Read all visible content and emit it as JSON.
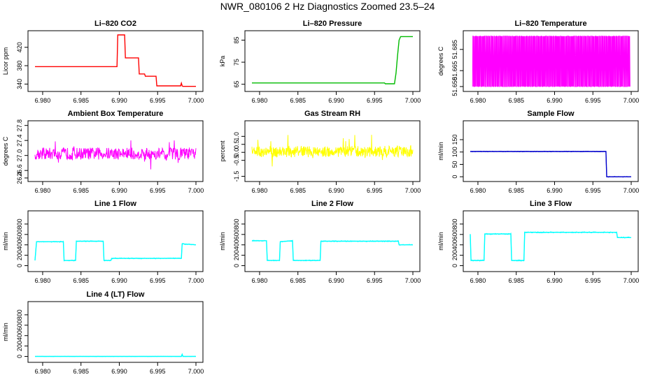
{
  "title": "NWR_080106  2 Hz Diagnostics Zoomed 23.5–24",
  "chart_data": [
    {
      "type": "line",
      "title": "Li–820 CO2",
      "ylabel": "Licor ppm",
      "color": "#ff0000",
      "xlim": [
        6.979,
        7.0
      ],
      "ylim": [
        330,
        450
      ],
      "xticks": [
        "6.980",
        "6.985",
        "6.990",
        "6.995",
        "7.000"
      ],
      "yticks": [
        "340",
        "380",
        "420"
      ],
      "series": [
        {
          "x": [
            6.979,
            6.9897,
            6.9898,
            6.9907,
            6.9908,
            6.9925,
            6.9926,
            6.9933,
            6.9934,
            6.9948,
            6.9949,
            6.998,
            6.9981,
            6.9982,
            6.9983,
            7.0
          ],
          "y": [
            378,
            378,
            447,
            447,
            397,
            397,
            362,
            362,
            357,
            357,
            336,
            336,
            342,
            336,
            335,
            335
          ]
        }
      ]
    },
    {
      "type": "line",
      "title": "Li–820 Pressure",
      "ylabel": "kPa",
      "color": "#00bb00",
      "xlim": [
        6.979,
        7.0
      ],
      "ylim": [
        63,
        88
      ],
      "xticks": [
        "6.980",
        "6.985",
        "6.990",
        "6.995",
        "7.000"
      ],
      "yticks": [
        "65",
        "75",
        "85"
      ],
      "series": [
        {
          "x": [
            6.979,
            6.9963,
            6.9964,
            6.9976,
            6.9978,
            6.998,
            6.9982,
            6.9984,
            7.0
          ],
          "y": [
            65.6,
            65.6,
            65.2,
            65.2,
            70,
            78,
            85,
            86.6,
            86.6
          ]
        }
      ]
    },
    {
      "type": "line",
      "title": "Li–820 Temperature",
      "ylabel": "degrees C",
      "color": "#ff00ff",
      "xlim": [
        6.979,
        7.0
      ],
      "ylim": [
        51.648,
        51.7
      ],
      "xticks": [
        "6.980",
        "6.985",
        "6.990",
        "6.995",
        "7.000"
      ],
      "yticks": [
        "51.650",
        "51.665",
        "51.685"
      ],
      "binary": [
        51.65,
        51.6975
      ]
    },
    {
      "type": "line",
      "title": "Ambient Box Temperature",
      "ylabel": "degrees C",
      "color": "#ff00ff",
      "xlim": [
        6.979,
        7.0
      ],
      "ylim": [
        26.38,
        27.85
      ],
      "xticks": [
        "6.980",
        "6.985",
        "6.990",
        "6.995",
        "7.000"
      ],
      "yticks": [
        "26.4",
        "26.6",
        "27.0",
        "27.4",
        "27.8"
      ],
      "noise": {
        "center": 27.05,
        "amp": 0.16,
        "spike": 0.45
      }
    },
    {
      "type": "line",
      "title": "Gas Stream RH",
      "ylabel": "percent",
      "color": "#ffff00",
      "xlim": [
        6.979,
        7.0
      ],
      "ylim": [
        -1.65,
        1.8
      ],
      "xticks": [
        "6.980",
        "6.985",
        "6.990",
        "6.995",
        "7.000"
      ],
      "yticks": [
        "-1.5",
        "-0.5",
        "0.0",
        "0.5",
        "1.0"
      ],
      "noise": {
        "center": 0.05,
        "amp": 0.35,
        "spike": 1.1
      }
    },
    {
      "type": "line",
      "title": "Sample Flow",
      "ylabel": "ml/min",
      "color": "#0000cc",
      "xlim": [
        6.979,
        7.0
      ],
      "ylim": [
        -8,
        215
      ],
      "xticks": [
        "6.980",
        "6.985",
        "6.990",
        "6.995",
        "7.000"
      ],
      "yticks": [
        "0",
        "50",
        "100",
        "150"
      ],
      "series": [
        {
          "x": [
            6.979,
            6.9967,
            6.9968,
            7.0
          ],
          "y": [
            102,
            102,
            0,
            0
          ]
        }
      ],
      "jitter": 1.5
    },
    {
      "type": "line",
      "title": "Line 1 Flow",
      "ylabel": "ml/min",
      "color": "#00ffff",
      "xlim": [
        6.979,
        7.0
      ],
      "ylim": [
        -60,
        1000
      ],
      "xticks": [
        "6.980",
        "6.985",
        "6.990",
        "6.995",
        "7.000"
      ],
      "yticks": [
        "0",
        "200",
        "400",
        "600",
        "800"
      ],
      "series": [
        {
          "x": [
            6.979,
            6.9792,
            6.9827,
            6.9828,
            6.9843,
            6.9844,
            6.9879,
            6.988,
            6.9889,
            6.989,
            6.9981,
            6.9982,
            7.0
          ],
          "y": [
            100,
            460,
            460,
            100,
            100,
            470,
            470,
            100,
            100,
            140,
            140,
            420,
            400
          ]
        }
      ],
      "jitter": 10
    },
    {
      "type": "line",
      "title": "Line 2 Flow",
      "ylabel": "ml/min",
      "color": "#00ffff",
      "xlim": [
        6.979,
        7.0
      ],
      "ylim": [
        -60,
        1000
      ],
      "xticks": [
        "6.980",
        "6.985",
        "6.990",
        "6.995",
        "7.000"
      ],
      "yticks": [
        "0",
        "200",
        "400",
        "600",
        "800"
      ],
      "series": [
        {
          "x": [
            6.979,
            6.9809,
            6.981,
            6.9826,
            6.9827,
            6.9843,
            6.9844,
            6.986,
            6.9861,
            6.9879,
            6.988,
            6.9981,
            6.9982,
            7.0
          ],
          "y": [
            480,
            480,
            100,
            100,
            460,
            480,
            100,
            100,
            100,
            100,
            470,
            470,
            400,
            400
          ]
        }
      ],
      "jitter": 10
    },
    {
      "type": "line",
      "title": "Line 3 Flow",
      "ylabel": "ml/min",
      "color": "#00ffff",
      "xlim": [
        6.979,
        7.0
      ],
      "ylim": [
        -60,
        1000
      ],
      "xticks": [
        "6.980",
        "6.985",
        "6.990",
        "6.995",
        "7.000"
      ],
      "yticks": [
        "0",
        "200",
        "400",
        "600",
        "800"
      ],
      "series": [
        {
          "x": [
            6.979,
            6.9791,
            6.9808,
            6.9809,
            6.9843,
            6.9844,
            6.986,
            6.9861,
            6.9981,
            6.9982,
            7.0
          ],
          "y": [
            600,
            100,
            100,
            610,
            610,
            100,
            100,
            640,
            640,
            540,
            540
          ]
        }
      ],
      "jitter": 12
    },
    {
      "type": "line",
      "title": "Line 4 (LT) Flow",
      "ylabel": "ml/min",
      "color": "#00ffff",
      "xlim": [
        6.979,
        7.0
      ],
      "ylim": [
        -60,
        1000
      ],
      "xticks": [
        "6.980",
        "6.985",
        "6.990",
        "6.995",
        "7.000"
      ],
      "yticks": [
        "0",
        "200",
        "400",
        "600",
        "800"
      ],
      "series": [
        {
          "x": [
            6.979,
            6.9981,
            6.9982,
            6.9983,
            7.0
          ],
          "y": [
            0,
            0,
            40,
            0,
            0
          ]
        }
      ],
      "jitter": 2
    }
  ]
}
